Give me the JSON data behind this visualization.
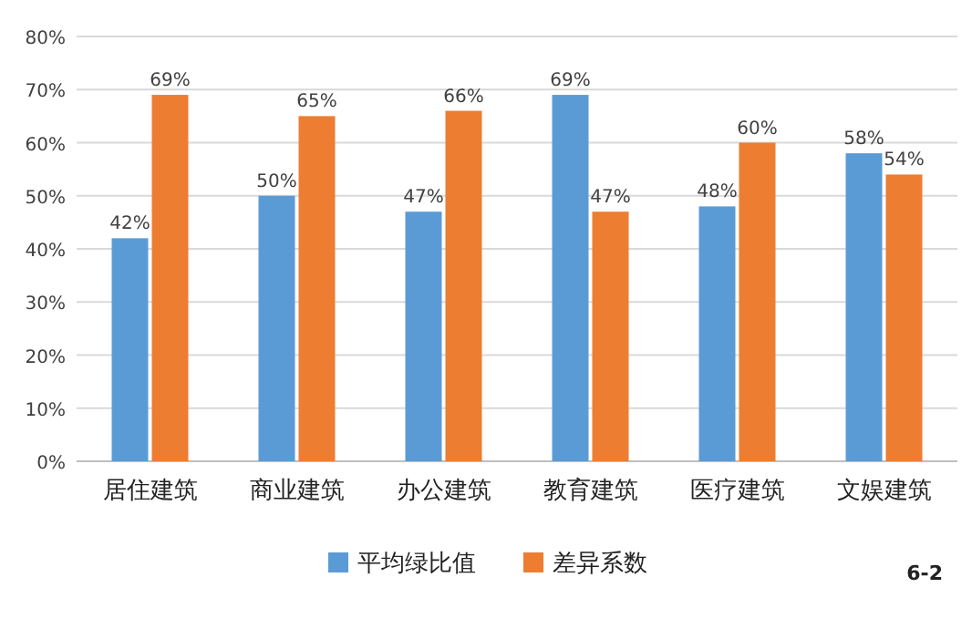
{
  "chart_data": {
    "type": "bar",
    "categories": [
      "居住建筑",
      "商业建筑",
      "办公建筑",
      "教育建筑",
      "医疗建筑",
      "文娱建筑"
    ],
    "series": [
      {
        "name": "平均绿比值",
        "color": "#5b9bd5",
        "values": [
          42,
          50,
          47,
          69,
          48,
          58
        ],
        "value_labels": [
          "42%",
          "50%",
          "47%",
          "69%",
          "48%",
          "58%"
        ]
      },
      {
        "name": "差异系数",
        "color": "#ed7d31",
        "values": [
          69,
          65,
          66,
          47,
          60,
          54
        ],
        "value_labels": [
          "69%",
          "65%",
          "66%",
          "47%",
          "60%",
          "54%"
        ]
      }
    ],
    "ylim": [
      0,
      80
    ],
    "yticks": [
      {
        "value": 0,
        "label": "0%"
      },
      {
        "value": 10,
        "label": "10%"
      },
      {
        "value": 20,
        "label": "20%"
      },
      {
        "value": 30,
        "label": "30%"
      },
      {
        "value": 40,
        "label": "40%"
      },
      {
        "value": 50,
        "label": "50%"
      },
      {
        "value": 60,
        "label": "60%"
      },
      {
        "value": 70,
        "label": "70%"
      },
      {
        "value": 80,
        "label": "80%"
      }
    ],
    "grid": "y",
    "legend": "bottom",
    "annotations": [
      "6-2"
    ]
  }
}
